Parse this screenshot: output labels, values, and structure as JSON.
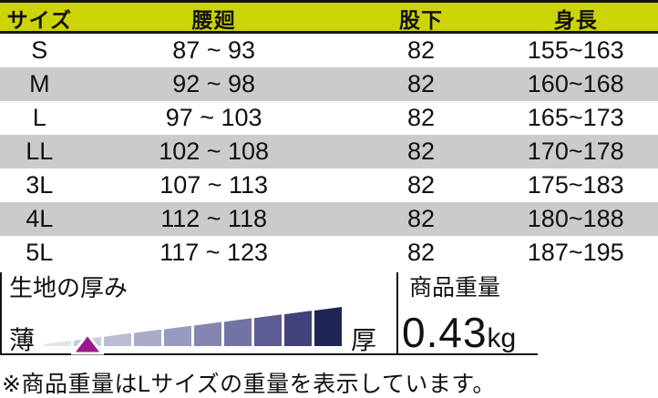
{
  "table": {
    "headers": [
      "サイズ",
      "腰廻",
      "股下",
      "身長"
    ],
    "rows": [
      {
        "size": "S",
        "waist": "87 ~ 93",
        "inseam": "82",
        "height": "155~163"
      },
      {
        "size": "M",
        "waist": "92 ~ 98",
        "inseam": "82",
        "height": "160~168"
      },
      {
        "size": "L",
        "waist": "97 ~ 103",
        "inseam": "82",
        "height": "165~173"
      },
      {
        "size": "LL",
        "waist": "102 ~ 108",
        "inseam": "82",
        "height": "170~178"
      },
      {
        "size": "3L",
        "waist": "107 ~ 113",
        "inseam": "82",
        "height": "175~183"
      },
      {
        "size": "4L",
        "waist": "112 ~ 118",
        "inseam": "82",
        "height": "180~188"
      },
      {
        "size": "5L",
        "waist": "117 ~ 123",
        "inseam": "82",
        "height": "187~195"
      }
    ]
  },
  "thickness": {
    "label": "生地の厚み",
    "thin_label": "薄",
    "thick_label": "厚",
    "levels": 10,
    "marker_level": 2,
    "marker_color": "#9c198c",
    "bar_colors": [
      "#e2e3ec",
      "#c9cbde",
      "#b9bcd4",
      "#a9abc9",
      "#989abf",
      "#8486b0",
      "#7173a3",
      "#5b5c93",
      "#41427a",
      "#202455"
    ]
  },
  "weight": {
    "label": "商品重量",
    "value": "0.43",
    "unit": "kg"
  },
  "note": "※商品重量はLサイズの重量を表示しています。",
  "colors": {
    "header_bg": "#ccd404",
    "alt_row_bg": "#c9cccb",
    "line": "#161616"
  }
}
